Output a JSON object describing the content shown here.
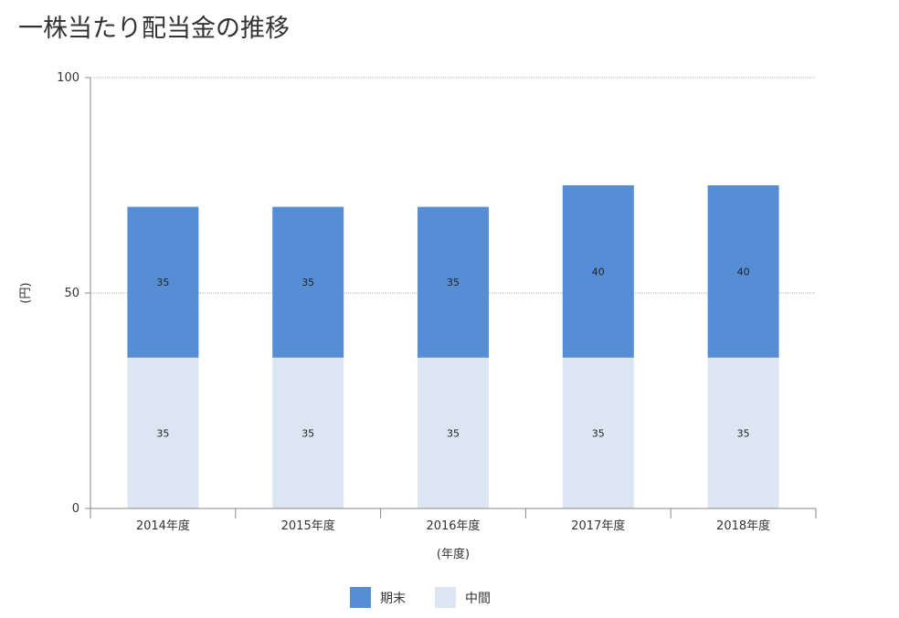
{
  "title": "一株当たり配当金の推移",
  "chart_data": {
    "type": "bar",
    "stacked": true,
    "title": "一株当たり配当金の推移",
    "xlabel": "(年度)",
    "ylabel": "(円)",
    "categories": [
      "2014年度",
      "2015年度",
      "2016年度",
      "2017年度",
      "2018年度"
    ],
    "series": [
      {
        "name": "中間",
        "values": [
          35,
          35,
          35,
          35,
          35
        ],
        "color": "#dce6f2"
      },
      {
        "name": "期末",
        "values": [
          35,
          35,
          35,
          40,
          40
        ],
        "color": "#558ed5"
      }
    ],
    "ylim": [
      0,
      100
    ],
    "yticks": [
      0,
      50,
      100
    ],
    "grid": true,
    "legend_position": "bottom"
  },
  "legend": [
    {
      "label": "期末",
      "color": "#558ed5"
    },
    {
      "label": "中間",
      "color": "#dce6f2"
    }
  ]
}
